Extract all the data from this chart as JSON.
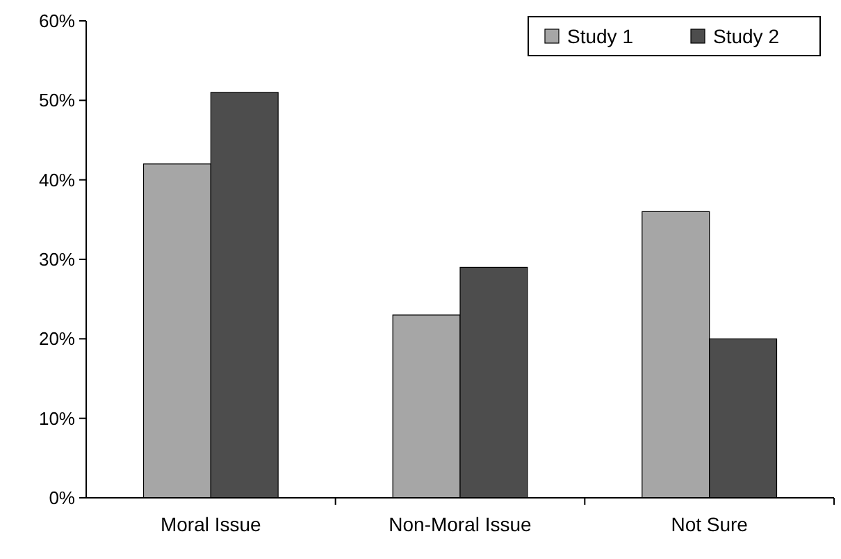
{
  "chart_data": {
    "type": "bar",
    "categories": [
      "Moral Issue",
      "Non-Moral Issue",
      "Not Sure"
    ],
    "series": [
      {
        "name": "Study 1",
        "color": "#a6a6a6",
        "values": [
          42,
          23,
          36
        ]
      },
      {
        "name": "Study 2",
        "color": "#4d4d4d",
        "values": [
          51,
          29,
          20
        ]
      }
    ],
    "ylim": [
      0,
      60
    ],
    "yticks": [
      {
        "value": 0,
        "label": "0%"
      },
      {
        "value": 10,
        "label": "10%"
      },
      {
        "value": 20,
        "label": "20%"
      },
      {
        "value": 30,
        "label": "30%"
      },
      {
        "value": 40,
        "label": "40%"
      },
      {
        "value": 50,
        "label": "50%"
      },
      {
        "value": 60,
        "label": "60%"
      }
    ],
    "grid": false,
    "legend": "top right"
  }
}
